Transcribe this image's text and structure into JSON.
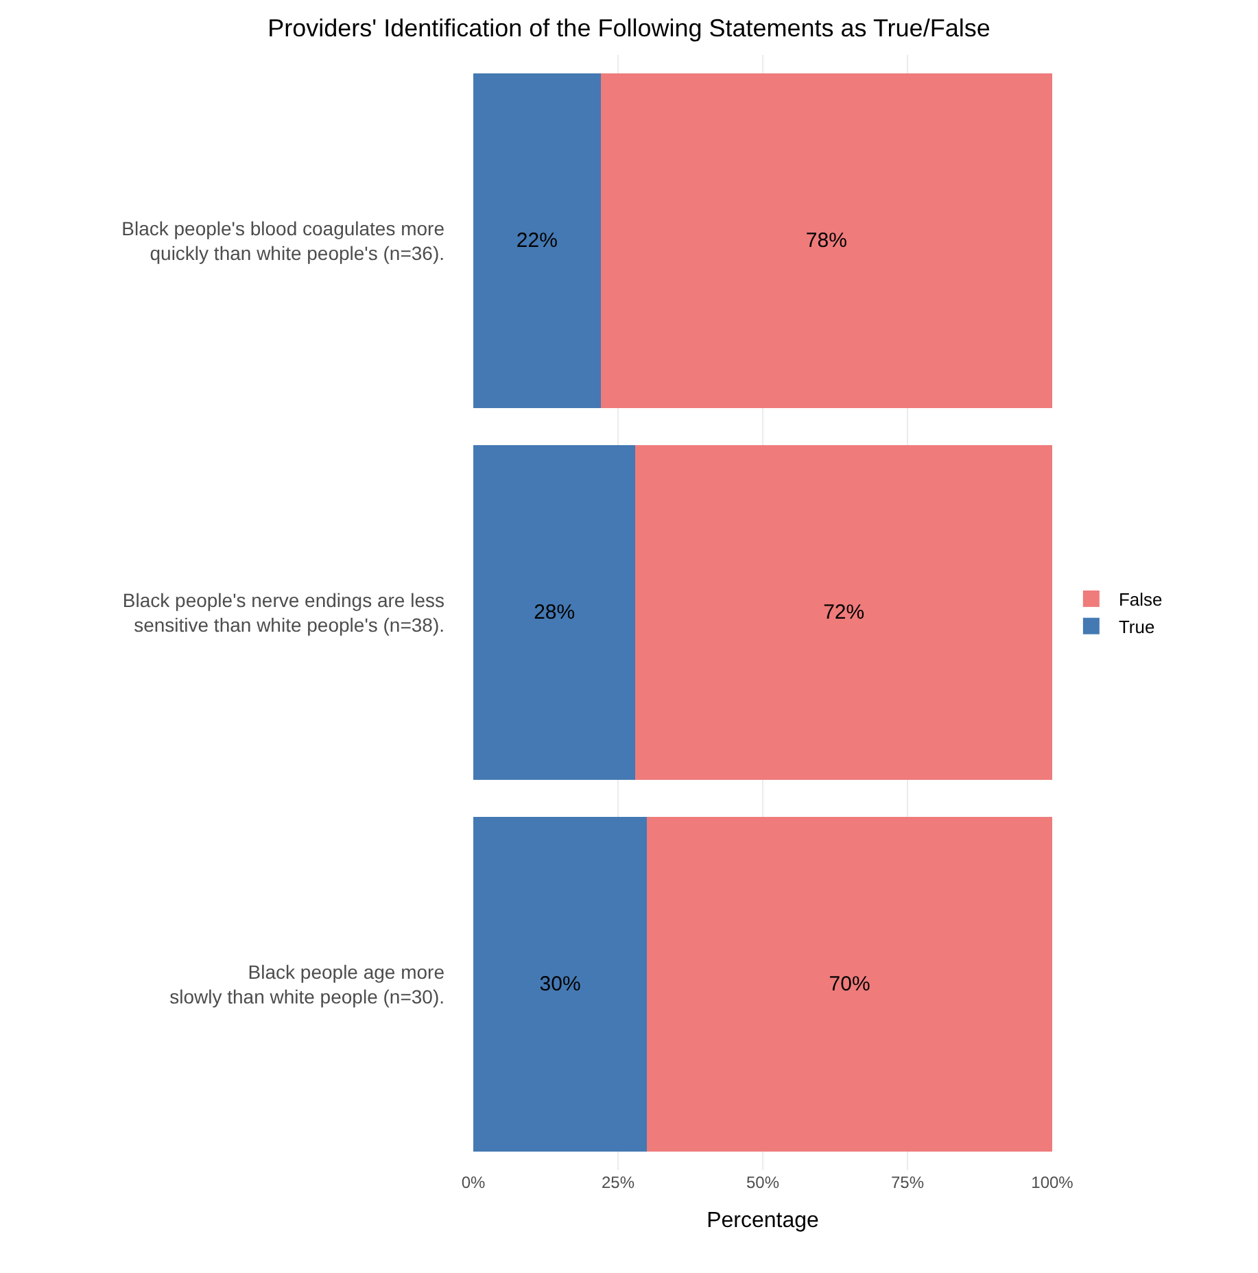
{
  "chart_data": {
    "type": "bar",
    "orientation": "horizontal",
    "stacked": true,
    "title": "Providers' Identification of the Following Statements as True/False",
    "xlabel": "Percentage",
    "categories": [
      "Black people's blood coagulates more\nquickly than white people's (n=36).",
      "Black people's nerve endings are less\nsensitive than white people's (n=38).",
      "Black people age more\nslowly than white people (n=30)."
    ],
    "series": [
      {
        "name": "True",
        "color": "#4479b3",
        "values": [
          22,
          28,
          30
        ],
        "value_labels": [
          "22%",
          "28%",
          "30%"
        ]
      },
      {
        "name": "False",
        "color": "#ef7b7b",
        "values": [
          78,
          72,
          70
        ],
        "value_labels": [
          "78%",
          "72%",
          "70%"
        ]
      }
    ],
    "xlim": [
      0,
      100
    ],
    "xticks": [
      {
        "value": 0,
        "label": "0%"
      },
      {
        "value": 25,
        "label": "25%"
      },
      {
        "value": 50,
        "label": "50%"
      },
      {
        "value": 75,
        "label": "75%"
      },
      {
        "value": 100,
        "label": "100%"
      }
    ],
    "grid": true,
    "legend": "right"
  }
}
